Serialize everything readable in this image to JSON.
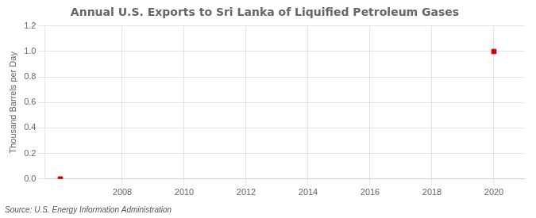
{
  "chart_data": {
    "type": "scatter",
    "title": "Annual U.S. Exports to Sri Lanka of Liquified Petroleum Gases",
    "ylabel": "Thousand Barrels per Day",
    "annotations": [
      "Source: U.S. Energy Information Administration"
    ],
    "x": [
      2006,
      2020
    ],
    "values": [
      0.0,
      1.0
    ],
    "color": "#cc0000",
    "marker": "square",
    "xlim": [
      2005.5,
      2021.0
    ],
    "xticks": [
      2008,
      2010,
      2012,
      2014,
      2016,
      2018,
      2020
    ],
    "ylim": [
      0.0,
      1.2
    ],
    "yticks": [
      {
        "value": 0.0,
        "label": "0.0"
      },
      0.2,
      0.4,
      0.6,
      0.8,
      {
        "value": 1.0,
        "label": "1.0"
      },
      1.2
    ],
    "grid": true
  }
}
